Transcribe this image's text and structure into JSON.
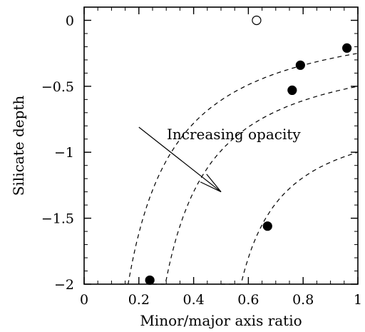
{
  "chart_data": {
    "type": "scatter",
    "xlabel": "Minor/major axis ratio",
    "ylabel": "Silicate depth",
    "xlim": [
      0,
      1
    ],
    "ylim": [
      -2,
      0.1
    ],
    "x_ticks": [
      0,
      0.2,
      0.4,
      0.6,
      0.8,
      1
    ],
    "x_tick_labels": [
      "0",
      "0.2",
      "0.4",
      "0.6",
      "0.8",
      "1"
    ],
    "y_ticks": [
      0,
      -0.5,
      -1,
      -1.5,
      -2
    ],
    "y_tick_labels": [
      "0",
      "−0.5",
      "−1",
      "−1.5",
      "−2"
    ],
    "series": [
      {
        "marker": "filled-circle",
        "points": [
          {
            "x": 0.24,
            "y": -1.97
          },
          {
            "x": 0.67,
            "y": -1.56
          },
          {
            "x": 0.76,
            "y": -0.53
          },
          {
            "x": 0.79,
            "y": -0.34
          },
          {
            "x": 0.96,
            "y": -0.21
          }
        ]
      },
      {
        "marker": "open-circle",
        "points": [
          {
            "x": 0.63,
            "y": 0.0
          }
        ]
      }
    ],
    "curves": [
      {
        "style": "dashed",
        "x_start": 0.13,
        "x_end": 1.0
      },
      {
        "style": "dashed",
        "x_start": 0.25,
        "x_end": 1.0
      },
      {
        "style": "dashed",
        "x_start": 0.5,
        "x_end": 1.0
      }
    ],
    "annotation": {
      "text": "Increasing opacity",
      "arrow_from": {
        "x": 0.2,
        "y": -0.81
      },
      "arrow_to": {
        "x": 0.5,
        "y": -1.3
      }
    }
  }
}
